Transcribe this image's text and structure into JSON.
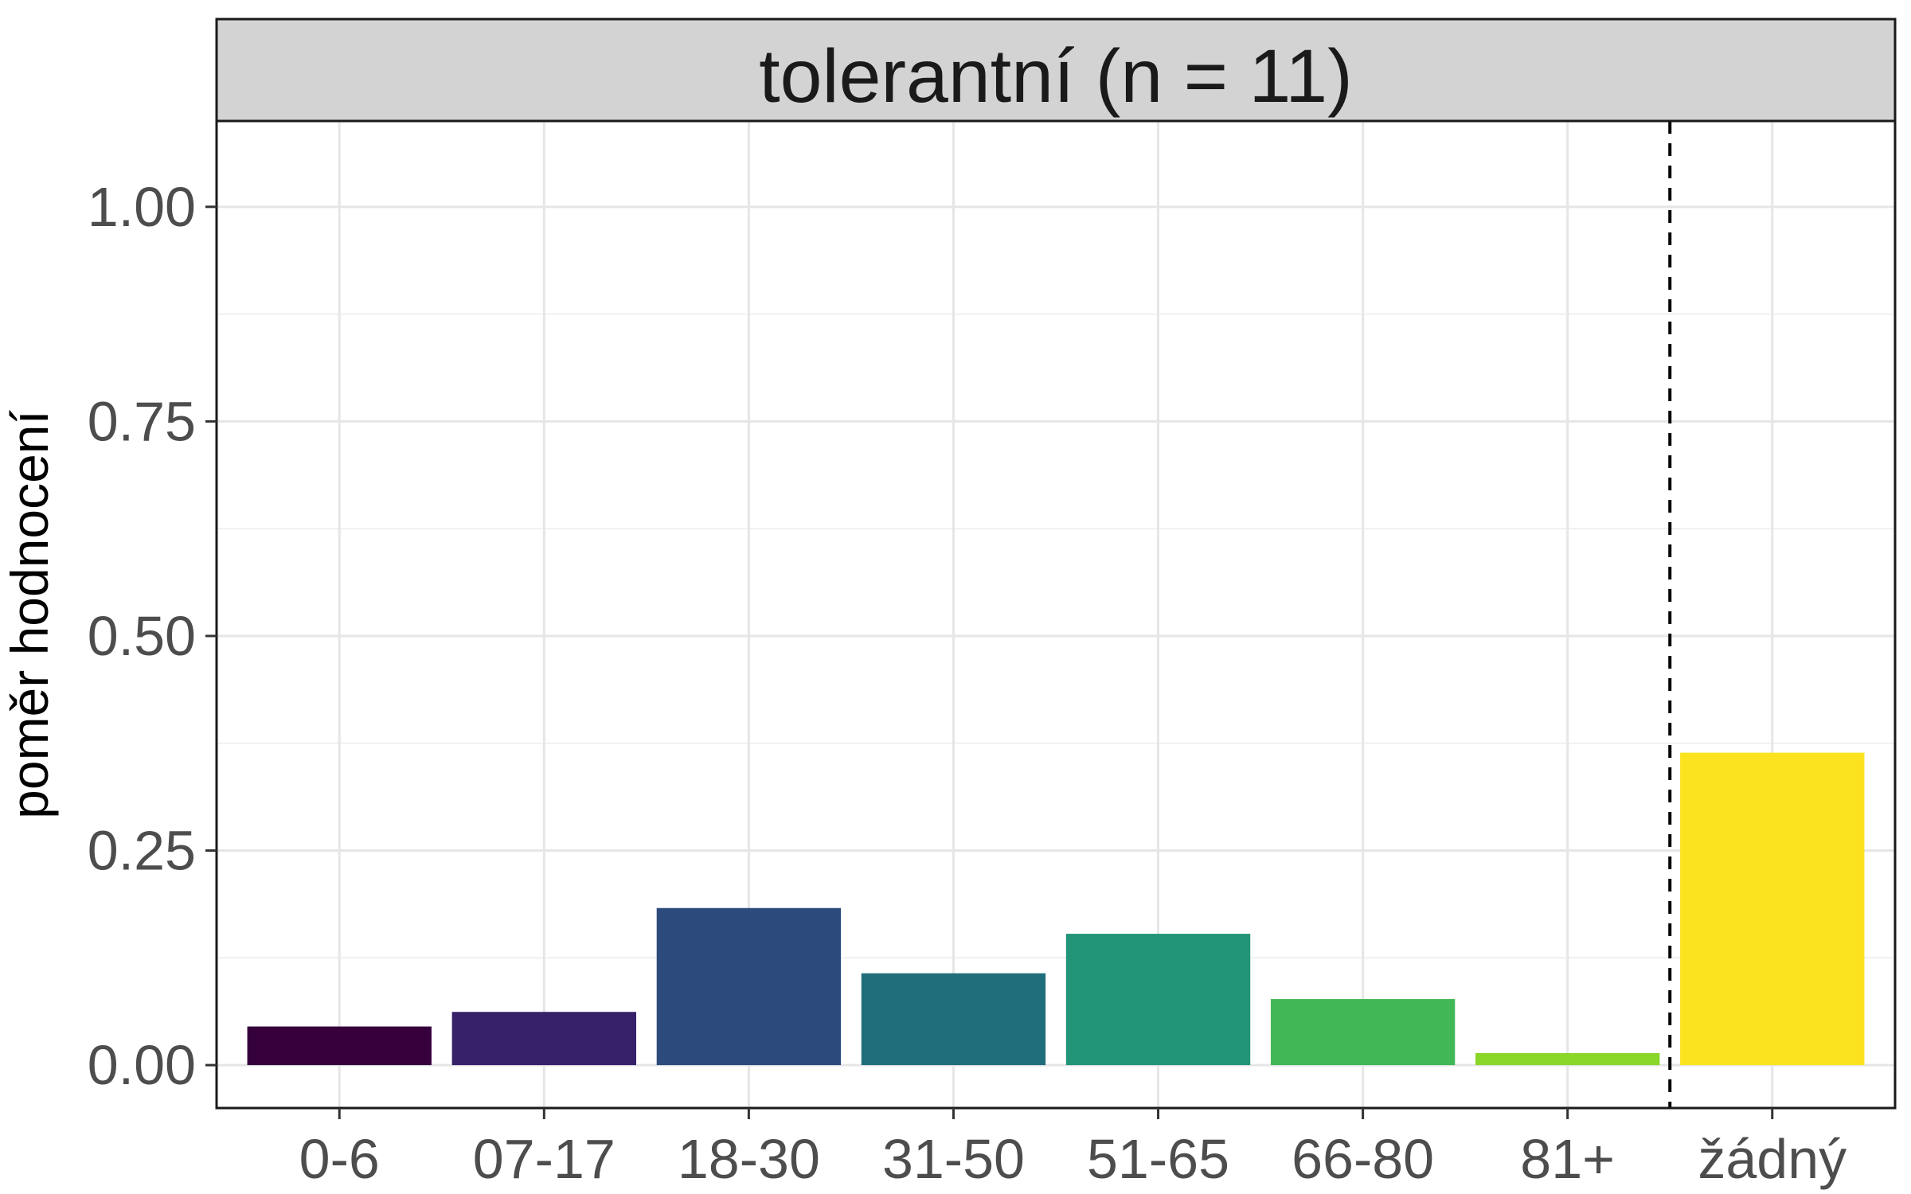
{
  "chart_data": {
    "type": "bar",
    "title": "tolerantní (n = 11)",
    "xlabel": "",
    "ylabel": "poměr hodnocení",
    "categories": [
      "0-6",
      "07-17",
      "18-30",
      "31-50",
      "51-65",
      "66-80",
      "81+",
      "žádný"
    ],
    "values": [
      0.045,
      0.062,
      0.183,
      0.107,
      0.153,
      0.077,
      0.014,
      0.364
    ],
    "colors": [
      "#35003c",
      "#372168",
      "#2c4a7c",
      "#206e7c",
      "#229478",
      "#41b756",
      "#8ad629",
      "#fbe31f"
    ],
    "ylim": [
      -0.05,
      1.1
    ],
    "yticks": [
      0,
      0.25,
      0.5,
      0.75,
      1
    ],
    "ytick_labels": [
      "0.00",
      "0.25",
      "0.50",
      "0.75",
      "1.00"
    ],
    "reference_line": {
      "between": [
        "81+",
        "žádný"
      ],
      "style": "dashed"
    },
    "grid": true,
    "legend": "none"
  }
}
